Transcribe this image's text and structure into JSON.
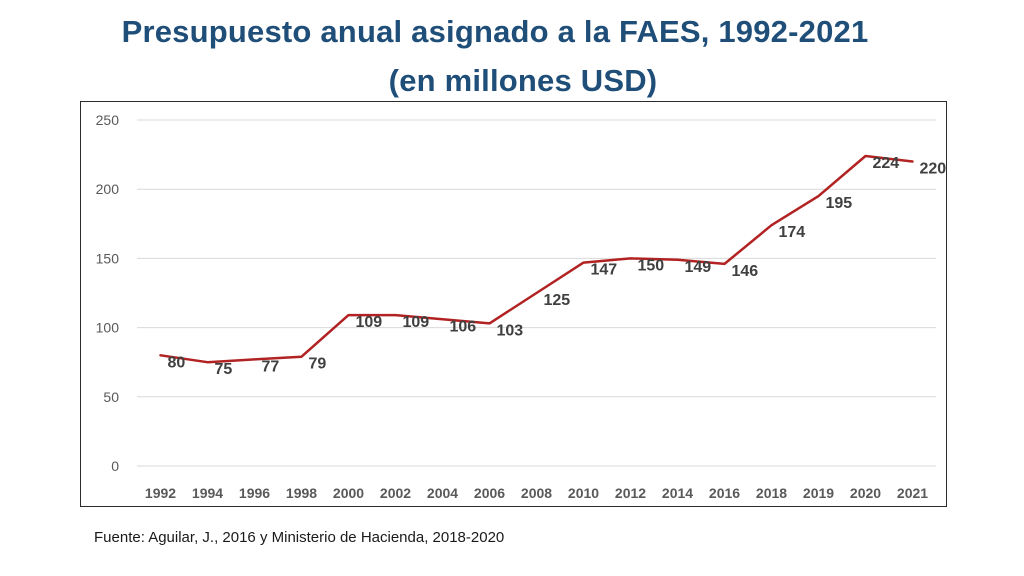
{
  "title_line1": "Presupuesto anual asignado a la FAES, 1992-2021",
  "title_line2": "(en millones USD)",
  "source_note": "Fuente: Aguilar, J., 2016 y Ministerio de Hacienda, 2018-2020",
  "colors": {
    "title": "#1f4e79",
    "line": "#b22222",
    "grid": "#d9d9d9",
    "axis_text": "#595959",
    "data_label": "#404040"
  },
  "chart_data": {
    "type": "line",
    "title": "Presupuesto anual asignado a la FAES, 1992-2021",
    "subtitle": "(en millones USD)",
    "xlabel": "",
    "ylabel": "",
    "categories": [
      "1992",
      "1994",
      "1996",
      "1998",
      "2000",
      "2002",
      "2004",
      "2006",
      "2008",
      "2010",
      "2012",
      "2014",
      "2016",
      "2018",
      "2019",
      "2020",
      "2021"
    ],
    "series": [
      {
        "values": [
          80,
          75,
          77,
          79,
          109,
          109,
          106,
          103,
          125,
          147,
          150,
          149,
          146,
          174,
          195,
          224,
          220
        ]
      }
    ],
    "ylim": [
      0,
      250
    ],
    "yticks": [
      0,
      50,
      100,
      150,
      200,
      250
    ],
    "grid": true,
    "legend": "none",
    "data_labels": true
  }
}
